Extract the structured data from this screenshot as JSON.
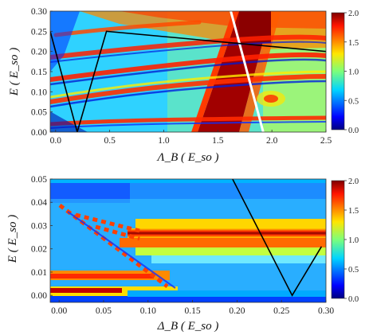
{
  "chart_data": [
    {
      "type": "heatmap",
      "xlabel": "Λ_B ( E_so )",
      "ylabel": "E ( E_so )",
      "xlim": [
        -0.05,
        2.5
      ],
      "ylim": [
        0.0,
        0.3
      ],
      "x_ticks": [
        "0.0",
        "0.5",
        "1.0",
        "1.5",
        "2.0",
        "2.5"
      ],
      "y_ticks": [
        "0.00",
        "0.05",
        "0.10",
        "0.15",
        "0.20",
        "0.25",
        "0.30"
      ],
      "colorbar": {
        "min": 0.0,
        "max": 2.0,
        "ticks": [
          "0.0",
          "0.5",
          "1.0",
          "1.5",
          "2.0"
        ],
        "colormap": "jet"
      },
      "line_overlay": {
        "color": "#000000",
        "x": [
          -0.05,
          0.2,
          0.47,
          2.5
        ],
        "y": [
          0.25,
          0.0,
          0.25,
          0.2
        ]
      },
      "white_line_overlay": {
        "color": "#ffffff",
        "x": [
          1.62,
          1.92
        ],
        "y": [
          0.3,
          0.0
        ]
      }
    },
    {
      "type": "heatmap",
      "xlabel": "Δ_B ( E_so )",
      "ylabel": "E ( E_so )",
      "xlim": [
        -0.01,
        0.3
      ],
      "ylim": [
        -0.003,
        0.05
      ],
      "x_ticks": [
        "0.00",
        "0.05",
        "0.10",
        "0.15",
        "0.20",
        "0.25",
        "0.30"
      ],
      "y_ticks": [
        "0.00",
        "0.01",
        "0.02",
        "0.03",
        "0.04",
        "0.05"
      ],
      "colorbar": {
        "min": 0.0,
        "max": 2.0,
        "ticks": [
          "0.0",
          "0.5",
          "1.0",
          "1.5",
          "2.0"
        ],
        "colormap": "jet"
      },
      "line_overlay": {
        "color": "#000000",
        "x": [
          0.195,
          0.262,
          0.295
        ],
        "y": [
          0.05,
          0.0,
          0.021
        ]
      }
    }
  ]
}
